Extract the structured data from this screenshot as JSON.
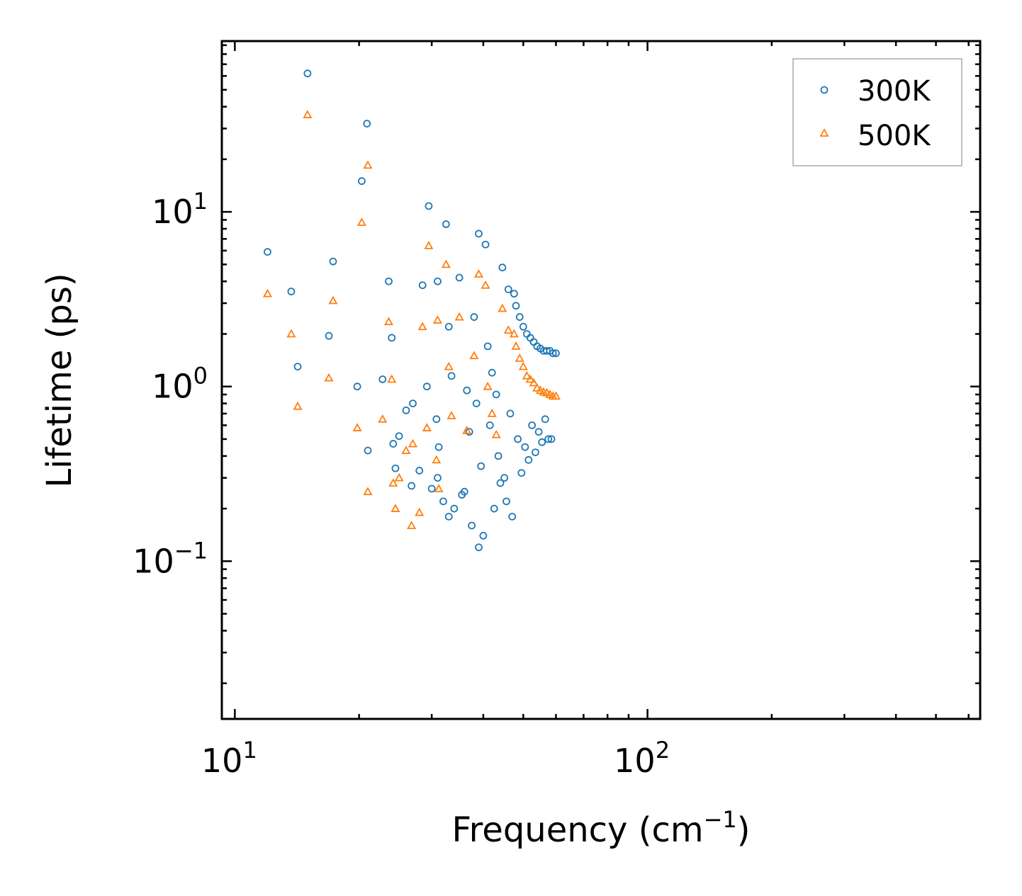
{
  "chart_data": {
    "type": "scatter",
    "title": "",
    "xlabel": "Frequency (cm",
    "xlabel_sup": "−1",
    "xlabel_suffix": ")",
    "ylabel": "Lifetime (ps)",
    "xscale": "log",
    "yscale": "log",
    "xlim": [
      9.3,
      640
    ],
    "ylim": [
      0.0125,
      95
    ],
    "grid": false,
    "legend_position": "top-right",
    "x_ticks": [
      {
        "value": 10,
        "base": "10",
        "exp": "1"
      },
      {
        "value": 100,
        "base": "10",
        "exp": "2"
      }
    ],
    "y_ticks": [
      {
        "value": 0.1,
        "base": "10",
        "exp": "−1"
      },
      {
        "value": 1,
        "base": "10",
        "exp": "0"
      },
      {
        "value": 10,
        "base": "10",
        "exp": "1"
      }
    ],
    "series": [
      {
        "name": "300K",
        "color": "#1f77b4",
        "marker": "circle",
        "x": [
          15.0,
          20.9,
          20.3,
          12.0,
          13.7,
          17.3,
          16.9,
          14.2,
          19.8,
          21.0,
          23.6,
          24.0,
          22.8,
          25.0,
          26.0,
          27.0,
          28.5,
          29.5,
          31.0,
          32.5,
          33.0,
          33.5,
          31.2,
          30.8,
          29.2,
          28.0,
          26.8,
          24.5,
          24.2,
          35.0,
          36.5,
          38.0,
          39.0,
          40.5,
          41.0,
          42.0,
          43.0,
          44.5,
          46.0,
          47.5,
          48.0,
          49.0,
          50.0,
          51.0,
          52.0,
          53.0,
          54.0,
          55.0,
          56.0,
          57.0,
          58.0,
          59.0,
          60.0,
          38.5,
          37.0,
          36.0,
          39.5,
          41.5,
          43.5,
          45.0,
          46.5,
          48.5,
          50.5,
          52.5,
          54.5,
          56.5,
          58.5,
          35.5,
          34.0,
          33.0,
          32.0,
          31.0,
          30.0,
          37.5,
          39.0,
          40.0,
          42.5,
          44.0,
          45.5,
          47.0,
          49.5,
          51.5,
          53.5,
          55.5,
          57.5
        ],
        "y": [
          62,
          32,
          15,
          5.9,
          3.5,
          5.2,
          1.95,
          1.3,
          1.0,
          0.43,
          4.0,
          1.9,
          1.1,
          0.52,
          0.73,
          0.8,
          3.8,
          10.8,
          4.0,
          8.5,
          2.2,
          1.15,
          0.45,
          0.65,
          1.0,
          0.33,
          0.27,
          0.34,
          0.47,
          4.2,
          0.95,
          2.5,
          7.5,
          6.5,
          1.7,
          1.2,
          0.9,
          4.8,
          3.6,
          3.4,
          2.9,
          2.5,
          2.2,
          2.0,
          1.9,
          1.8,
          1.7,
          1.65,
          1.6,
          1.6,
          1.6,
          1.55,
          1.55,
          0.8,
          0.55,
          0.25,
          0.35,
          0.6,
          0.4,
          0.3,
          0.7,
          0.5,
          0.45,
          0.6,
          0.55,
          0.65,
          0.5,
          0.24,
          0.2,
          0.18,
          0.22,
          0.3,
          0.26,
          0.16,
          0.12,
          0.14,
          0.2,
          0.28,
          0.22,
          0.18,
          0.32,
          0.38,
          0.42,
          0.48,
          0.5
        ]
      },
      {
        "name": "500K",
        "color": "#ff7f0e",
        "marker": "triangle",
        "x": [
          15.0,
          21.0,
          20.3,
          12.0,
          13.7,
          17.3,
          16.9,
          14.2,
          19.8,
          21.0,
          23.6,
          24.0,
          22.8,
          25.0,
          26.0,
          27.0,
          28.5,
          29.5,
          31.0,
          32.5,
          33.0,
          33.5,
          31.2,
          30.8,
          29.2,
          28.0,
          26.8,
          24.5,
          24.2,
          35.0,
          36.5,
          38.0,
          39.0,
          40.5,
          41.0,
          42.0,
          43.0,
          44.5,
          46.0,
          47.5,
          48.0,
          49.0,
          50.0,
          51.0,
          52.0,
          53.0,
          54.0,
          55.0,
          56.0,
          57.0,
          58.0,
          59.0,
          60.0
        ],
        "y": [
          36,
          18.5,
          8.7,
          3.4,
          2.0,
          3.1,
          1.12,
          0.77,
          0.58,
          0.25,
          2.35,
          1.1,
          0.65,
          0.3,
          0.43,
          0.47,
          2.2,
          6.4,
          2.4,
          5.0,
          1.3,
          0.68,
          0.26,
          0.38,
          0.58,
          0.19,
          0.16,
          0.2,
          0.28,
          2.5,
          0.56,
          1.5,
          4.4,
          3.8,
          1.0,
          0.7,
          0.53,
          2.8,
          2.1,
          2.0,
          1.7,
          1.45,
          1.3,
          1.15,
          1.1,
          1.05,
          0.98,
          0.95,
          0.93,
          0.92,
          0.9,
          0.88,
          0.88
        ]
      }
    ]
  },
  "legend": {
    "entries": [
      "300K",
      "500K"
    ]
  }
}
